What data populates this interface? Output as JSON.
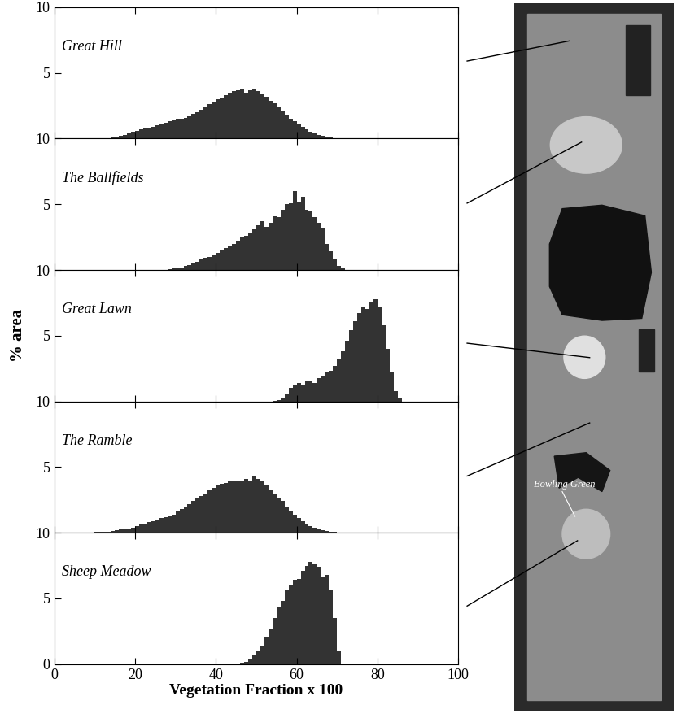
{
  "y_label": "% area",
  "image_annotation": "Bowling Green",
  "chart_data": [
    {
      "type": "histogram",
      "title": "Great Hill",
      "color": "#333333",
      "bins": [
        14,
        15,
        16,
        17,
        18,
        19,
        20,
        21,
        22,
        23,
        24,
        25,
        26,
        27,
        28,
        29,
        30,
        31,
        32,
        33,
        34,
        35,
        36,
        37,
        38,
        39,
        40,
        41,
        42,
        43,
        44,
        45,
        46,
        47,
        48,
        49,
        50,
        51,
        52,
        53,
        54,
        55,
        56,
        57,
        58,
        59,
        60,
        61,
        62,
        63,
        64,
        65,
        66,
        67,
        68,
        69,
        70,
        71
      ],
      "counts": [
        0.1,
        0.15,
        0.2,
        0.3,
        0.4,
        0.5,
        0.6,
        0.7,
        0.8,
        0.8,
        0.9,
        1.0,
        1.1,
        1.2,
        1.3,
        1.4,
        1.5,
        1.5,
        1.6,
        1.7,
        1.9,
        2.0,
        2.2,
        2.4,
        2.6,
        2.8,
        3.0,
        3.1,
        3.3,
        3.5,
        3.6,
        3.7,
        3.8,
        3.5,
        3.7,
        3.8,
        3.6,
        3.4,
        3.2,
        2.9,
        2.7,
        2.4,
        2.1,
        1.8,
        1.5,
        1.3,
        1.1,
        0.9,
        0.7,
        0.5,
        0.4,
        0.3,
        0.2,
        0.15,
        0.1,
        0.05,
        0.03
      ],
      "xlim": [
        0,
        100
      ],
      "xticks": [
        0,
        20,
        40,
        60,
        80,
        100
      ],
      "ylim": [
        0,
        10
      ],
      "yticks": [
        5,
        10
      ],
      "tick_labels": "y"
    },
    {
      "type": "histogram",
      "title": "The Ballfields",
      "color": "#333333",
      "bins": [
        28,
        29,
        30,
        31,
        32,
        33,
        34,
        35,
        36,
        37,
        38,
        39,
        40,
        41,
        42,
        43,
        44,
        45,
        46,
        47,
        48,
        49,
        50,
        51,
        52,
        53,
        54,
        55,
        56,
        57,
        58,
        59,
        60,
        61,
        62,
        63,
        64,
        65,
        66,
        67,
        68,
        69,
        70,
        71,
        72
      ],
      "counts": [
        0.05,
        0.1,
        0.15,
        0.2,
        0.3,
        0.4,
        0.5,
        0.6,
        0.8,
        0.9,
        1.0,
        1.2,
        1.3,
        1.5,
        1.7,
        1.8,
        2.0,
        2.2,
        2.5,
        2.6,
        2.8,
        3.1,
        3.4,
        3.7,
        3.3,
        3.6,
        4.1,
        4.0,
        4.6,
        5.0,
        5.1,
        6.0,
        5.2,
        5.6,
        4.6,
        4.5,
        4.0,
        3.6,
        3.2,
        2.0,
        1.4,
        0.8,
        0.3,
        0.1
      ],
      "xlim": [
        0,
        100
      ],
      "xticks": [
        0,
        20,
        40,
        60,
        80,
        100
      ],
      "ylim": [
        0,
        10
      ],
      "yticks": [
        5,
        10
      ],
      "tick_labels": "y"
    },
    {
      "type": "histogram",
      "title": "Great Lawn",
      "color": "#333333",
      "bins": [
        54,
        55,
        56,
        57,
        58,
        59,
        60,
        61,
        62,
        63,
        64,
        65,
        66,
        67,
        68,
        69,
        70,
        71,
        72,
        73,
        74,
        75,
        76,
        77,
        78,
        79,
        80,
        81,
        82,
        83,
        84,
        85,
        86
      ],
      "counts": [
        0.05,
        0.1,
        0.3,
        0.6,
        1.0,
        1.3,
        1.4,
        1.2,
        1.5,
        1.6,
        1.4,
        1.8,
        1.9,
        2.2,
        2.3,
        2.7,
        3.2,
        3.8,
        4.6,
        5.4,
        6.1,
        6.7,
        7.2,
        7.0,
        7.5,
        7.8,
        7.2,
        5.8,
        4.0,
        2.2,
        0.8,
        0.2
      ],
      "xlim": [
        0,
        100
      ],
      "xticks": [
        0,
        20,
        40,
        60,
        80,
        100
      ],
      "ylim": [
        0,
        10
      ],
      "yticks": [
        5,
        10
      ],
      "tick_labels": "y"
    },
    {
      "type": "histogram",
      "title": "The Ramble",
      "color": "#333333",
      "bins": [
        10,
        11,
        12,
        13,
        14,
        15,
        16,
        17,
        18,
        19,
        20,
        21,
        22,
        23,
        24,
        25,
        26,
        27,
        28,
        29,
        30,
        31,
        32,
        33,
        34,
        35,
        36,
        37,
        38,
        39,
        40,
        41,
        42,
        43,
        44,
        45,
        46,
        47,
        48,
        49,
        50,
        51,
        52,
        53,
        54,
        55,
        56,
        57,
        58,
        59,
        60,
        61,
        62,
        63,
        64,
        65,
        66,
        67,
        68,
        69,
        70,
        71
      ],
      "counts": [
        0.05,
        0.05,
        0.1,
        0.1,
        0.15,
        0.2,
        0.25,
        0.3,
        0.35,
        0.4,
        0.5,
        0.6,
        0.7,
        0.8,
        0.9,
        1.0,
        1.1,
        1.2,
        1.3,
        1.4,
        1.6,
        1.8,
        2.0,
        2.2,
        2.4,
        2.6,
        2.8,
        3.0,
        3.2,
        3.4,
        3.6,
        3.7,
        3.8,
        3.9,
        4.0,
        4.0,
        4.0,
        4.1,
        4.0,
        4.3,
        4.1,
        3.9,
        3.6,
        3.3,
        3.0,
        2.7,
        2.4,
        2.0,
        1.7,
        1.4,
        1.1,
        0.9,
        0.7,
        0.5,
        0.4,
        0.3,
        0.2,
        0.15,
        0.1,
        0.05,
        0.03
      ],
      "xlim": [
        0,
        100
      ],
      "xticks": [
        0,
        20,
        40,
        60,
        80,
        100
      ],
      "ylim": [
        0,
        10
      ],
      "yticks": [
        5,
        10
      ],
      "tick_labels": "y"
    },
    {
      "type": "histogram",
      "title": "Sheep Meadow",
      "color": "#333333",
      "x_label": "Vegetation Fraction x 100",
      "bins": [
        46,
        47,
        48,
        49,
        50,
        51,
        52,
        53,
        54,
        55,
        56,
        57,
        58,
        59,
        60,
        61,
        62,
        63,
        64,
        65,
        66,
        67,
        68,
        69,
        70,
        71
      ],
      "counts": [
        0.1,
        0.2,
        0.4,
        0.7,
        1.0,
        1.4,
        2.0,
        2.7,
        3.5,
        4.3,
        4.8,
        5.6,
        6.0,
        6.4,
        6.5,
        7.1,
        7.5,
        7.8,
        7.6,
        7.4,
        6.6,
        6.8,
        5.7,
        3.5,
        1.0
      ],
      "xlim": [
        0,
        100
      ],
      "xticks": [
        0,
        20,
        40,
        60,
        80,
        100
      ],
      "ylim": [
        0,
        10
      ],
      "yticks": [
        0,
        5,
        10
      ]
    }
  ]
}
